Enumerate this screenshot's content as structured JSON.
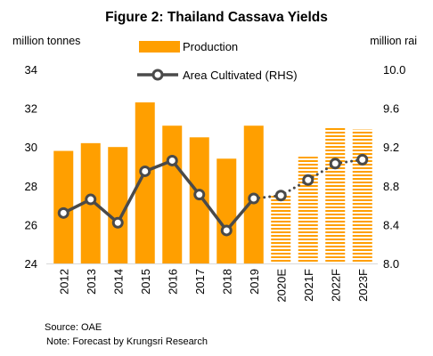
{
  "chart_data": {
    "type": "bar",
    "title": "Figure 2: Thailand Cassava Yields",
    "left_axis_label": "million tonnes",
    "right_axis_label": "million rai",
    "categories": [
      "2012",
      "2013",
      "2014",
      "2015",
      "2016",
      "2017",
      "2018",
      "2019",
      "2020E",
      "2021F",
      "2022F",
      "2023F"
    ],
    "forecast_categories": [
      "2020E",
      "2021F",
      "2022F",
      "2023F"
    ],
    "left_ylim": [
      24,
      34
    ],
    "left_ticks": [
      "24",
      "26",
      "28",
      "30",
      "32",
      "34"
    ],
    "right_ylim": [
      8.0,
      10.0
    ],
    "right_ticks": [
      "8.0",
      "8.4",
      "8.8",
      "9.2",
      "9.6",
      "10.0"
    ],
    "series": [
      {
        "name": "Production",
        "type": "bar",
        "axis": "left",
        "color": "#ff9f00",
        "values": [
          29.8,
          30.2,
          30.0,
          32.3,
          31.1,
          30.5,
          29.4,
          31.1,
          27.5,
          29.5,
          31.0,
          30.9
        ]
      },
      {
        "name": "Area Cultivated (RHS)",
        "type": "line",
        "axis": "right",
        "color": "#4a4a4a",
        "values": [
          8.52,
          8.66,
          8.42,
          8.95,
          9.06,
          8.71,
          8.34,
          8.67,
          8.7,
          8.86,
          9.03,
          9.07
        ]
      }
    ],
    "grid": false,
    "legend_position": "top-center"
  },
  "footnotes": {
    "source": "Source: OAE",
    "note": "Note: Forecast by Krungsri Research"
  }
}
